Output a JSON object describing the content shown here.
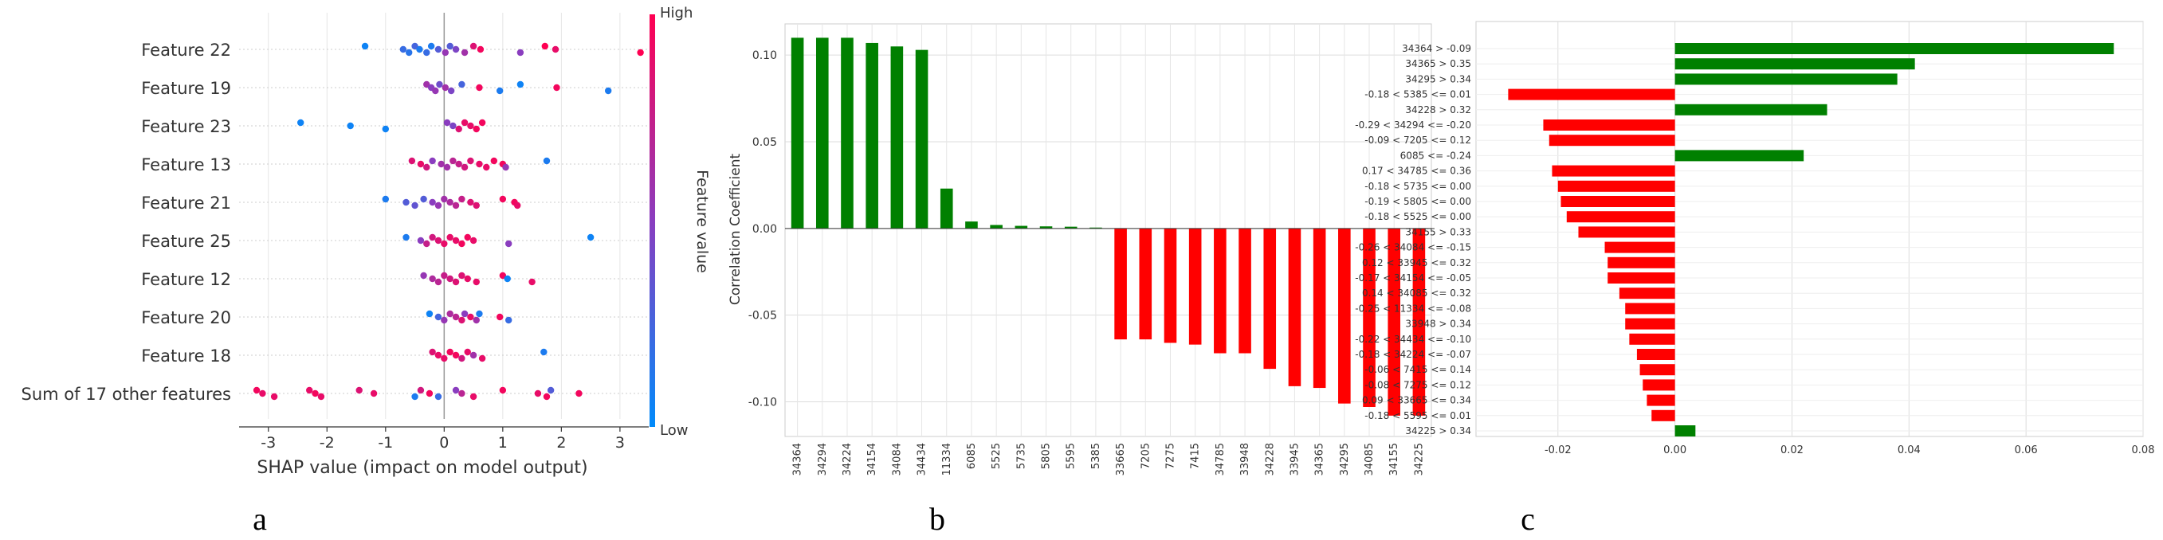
{
  "chart_data": [
    {
      "type": "scatter",
      "panel_label": "a",
      "features": [
        "Feature 22",
        "Feature 19",
        "Feature 23",
        "Feature 13",
        "Feature 21",
        "Feature 25",
        "Feature 12",
        "Feature 20",
        "Feature 18",
        "Sum of 17 other features"
      ],
      "xlabel": "SHAP value (impact on model output)",
      "xlim": [
        -3.5,
        3.6
      ],
      "xticks": [
        -3,
        -2,
        -1,
        0,
        1,
        2,
        3
      ],
      "colorbar": {
        "label": "Feature value",
        "high_label": "High",
        "low_label": "Low",
        "high_color": "#ff0052",
        "low_color": "#008bfb"
      },
      "series": [
        {
          "feature": "Feature 22",
          "points": [
            [
              -1.35,
              0.05
            ],
            [
              -0.7,
              0.2
            ],
            [
              -0.6,
              0.15
            ],
            [
              -0.5,
              0.25
            ],
            [
              -0.42,
              0.1
            ],
            [
              -0.3,
              0.2
            ],
            [
              -0.22,
              0.1
            ],
            [
              -0.1,
              0.3
            ],
            [
              0.02,
              0.55
            ],
            [
              0.1,
              0.3
            ],
            [
              0.2,
              0.45
            ],
            [
              0.35,
              0.6
            ],
            [
              0.5,
              0.85
            ],
            [
              0.62,
              0.95
            ],
            [
              1.3,
              0.5
            ],
            [
              1.72,
              1.0
            ],
            [
              1.9,
              0.9
            ],
            [
              3.35,
              1.0
            ]
          ]
        },
        {
          "feature": "Feature 19",
          "points": [
            [
              -0.3,
              0.6
            ],
            [
              -0.22,
              0.5
            ],
            [
              -0.15,
              0.55
            ],
            [
              -0.08,
              0.4
            ],
            [
              0.02,
              0.6
            ],
            [
              0.12,
              0.45
            ],
            [
              0.3,
              0.25
            ],
            [
              0.6,
              0.95
            ],
            [
              0.95,
              0.1
            ],
            [
              1.3,
              0.05
            ],
            [
              1.92,
              0.95
            ],
            [
              2.8,
              0.1
            ]
          ]
        },
        {
          "feature": "Feature 23",
          "points": [
            [
              -2.45,
              0.05
            ],
            [
              -1.6,
              0.05
            ],
            [
              -1.0,
              0.05
            ],
            [
              0.05,
              0.5
            ],
            [
              0.15,
              0.45
            ],
            [
              0.25,
              0.85
            ],
            [
              0.35,
              0.9
            ],
            [
              0.45,
              0.9
            ],
            [
              0.55,
              0.95
            ],
            [
              0.65,
              0.95
            ]
          ]
        },
        {
          "feature": "Feature 13",
          "points": [
            [
              -0.55,
              0.85
            ],
            [
              -0.4,
              0.9
            ],
            [
              -0.3,
              0.8
            ],
            [
              -0.2,
              0.5
            ],
            [
              -0.05,
              0.6
            ],
            [
              0.05,
              0.6
            ],
            [
              0.15,
              0.7
            ],
            [
              0.25,
              0.75
            ],
            [
              0.35,
              0.8
            ],
            [
              0.45,
              0.85
            ],
            [
              0.6,
              0.9
            ],
            [
              0.72,
              0.9
            ],
            [
              0.85,
              0.95
            ],
            [
              1.0,
              0.95
            ],
            [
              1.05,
              0.55
            ],
            [
              1.75,
              0.1
            ]
          ]
        },
        {
          "feature": "Feature 21",
          "points": [
            [
              -1.0,
              0.1
            ],
            [
              -0.65,
              0.3
            ],
            [
              -0.5,
              0.35
            ],
            [
              -0.35,
              0.3
            ],
            [
              -0.2,
              0.5
            ],
            [
              -0.1,
              0.55
            ],
            [
              0.0,
              0.6
            ],
            [
              0.1,
              0.65
            ],
            [
              0.2,
              0.7
            ],
            [
              0.3,
              0.75
            ],
            [
              0.45,
              0.85
            ],
            [
              0.55,
              0.85
            ],
            [
              1.0,
              0.95
            ],
            [
              1.2,
              0.95
            ],
            [
              1.25,
              0.9
            ]
          ]
        },
        {
          "feature": "Feature 25",
          "points": [
            [
              -0.65,
              0.1
            ],
            [
              -0.4,
              0.5
            ],
            [
              -0.3,
              0.75
            ],
            [
              -0.2,
              0.8
            ],
            [
              -0.1,
              0.85
            ],
            [
              0.0,
              0.9
            ],
            [
              0.1,
              0.9
            ],
            [
              0.2,
              0.9
            ],
            [
              0.3,
              0.95
            ],
            [
              0.4,
              0.95
            ],
            [
              0.5,
              0.9
            ],
            [
              1.1,
              0.5
            ],
            [
              2.5,
              0.05
            ]
          ]
        },
        {
          "feature": "Feature 12",
          "points": [
            [
              -0.35,
              0.55
            ],
            [
              -0.2,
              0.65
            ],
            [
              -0.1,
              0.7
            ],
            [
              0.0,
              0.75
            ],
            [
              0.1,
              0.8
            ],
            [
              0.2,
              0.85
            ],
            [
              0.3,
              0.85
            ],
            [
              0.4,
              0.9
            ],
            [
              0.55,
              0.9
            ],
            [
              1.0,
              0.95
            ],
            [
              1.08,
              0.05
            ],
            [
              1.5,
              0.9
            ]
          ]
        },
        {
          "feature": "Feature 20",
          "points": [
            [
              -0.25,
              0.05
            ],
            [
              -0.1,
              0.25
            ],
            [
              0.0,
              0.55
            ],
            [
              0.1,
              0.65
            ],
            [
              0.2,
              0.7
            ],
            [
              0.3,
              0.85
            ],
            [
              0.35,
              0.5
            ],
            [
              0.45,
              0.9
            ],
            [
              0.55,
              0.6
            ],
            [
              0.6,
              0.1
            ],
            [
              0.95,
              0.95
            ],
            [
              1.1,
              0.2
            ]
          ]
        },
        {
          "feature": "Feature 18",
          "points": [
            [
              -0.2,
              0.85
            ],
            [
              -0.1,
              0.9
            ],
            [
              0.0,
              0.9
            ],
            [
              0.1,
              0.95
            ],
            [
              0.2,
              0.95
            ],
            [
              0.3,
              0.8
            ],
            [
              0.4,
              0.9
            ],
            [
              0.5,
              0.6
            ],
            [
              0.65,
              0.9
            ],
            [
              1.7,
              0.1
            ]
          ]
        },
        {
          "feature": "Sum of 17 other features",
          "points": [
            [
              -3.2,
              0.95
            ],
            [
              -3.1,
              0.9
            ],
            [
              -2.9,
              0.9
            ],
            [
              -2.3,
              0.9
            ],
            [
              -2.2,
              0.95
            ],
            [
              -2.1,
              0.9
            ],
            [
              -1.45,
              0.85
            ],
            [
              -1.2,
              0.9
            ],
            [
              -0.5,
              0.1
            ],
            [
              -0.4,
              0.8
            ],
            [
              -0.25,
              0.95
            ],
            [
              -0.1,
              0.2
            ],
            [
              0.2,
              0.5
            ],
            [
              0.3,
              0.7
            ],
            [
              0.5,
              0.9
            ],
            [
              1.0,
              0.95
            ],
            [
              1.6,
              0.9
            ],
            [
              1.75,
              0.95
            ],
            [
              1.82,
              0.3
            ],
            [
              2.3,
              0.95
            ]
          ]
        }
      ]
    },
    {
      "type": "bar",
      "panel_label": "b",
      "ylabel": "Correlation Coefficient",
      "ylim": [
        -0.12,
        0.118
      ],
      "yticks": [
        0.1,
        0.05,
        0.0,
        -0.05,
        -0.1
      ],
      "ytick_labels": [
        "0.10",
        "0.05",
        "0.00",
        "-0.05",
        "-0.10"
      ],
      "categories": [
        "34364",
        "34294",
        "34224",
        "34154",
        "34084",
        "34434",
        "11334",
        "6085",
        "5525",
        "5735",
        "5805",
        "5595",
        "5385",
        "33665",
        "7205",
        "7275",
        "7415",
        "34785",
        "33948",
        "34228",
        "33945",
        "34365",
        "34295",
        "34085",
        "34155",
        "34225"
      ],
      "values": [
        0.11,
        0.11,
        0.11,
        0.107,
        0.105,
        0.103,
        0.023,
        0.004,
        0.002,
        0.0015,
        0.0012,
        0.001,
        0.0005,
        -0.064,
        -0.064,
        -0.066,
        -0.067,
        -0.072,
        -0.072,
        -0.081,
        -0.091,
        -0.092,
        -0.101,
        -0.103,
        -0.108,
        -0.108
      ],
      "positive_color": "#008000",
      "negative_color": "#ff0000"
    },
    {
      "type": "bar",
      "orientation": "horizontal",
      "panel_label": "c",
      "xlim": [
        -0.034,
        0.08
      ],
      "xticks": [
        -0.02,
        0.0,
        0.02,
        0.04,
        0.06,
        0.08
      ],
      "xtick_labels": [
        "-0.02",
        "0.00",
        "0.02",
        "0.04",
        "0.06",
        "0.08"
      ],
      "categories": [
        "34364 > -0.09",
        "34365 > 0.35",
        "34295 > 0.34",
        "-0.18 < 5385 <= 0.01",
        "34228 > 0.32",
        "-0.29 < 34294 <= -0.20",
        "-0.09 < 7205 <= 0.12",
        "6085 <= -0.24",
        "0.17 < 34785 <= 0.36",
        "-0.18 < 5735 <= 0.00",
        "-0.19 < 5805 <= 0.00",
        "-0.18 < 5525 <= 0.00",
        "34155 > 0.33",
        "-0.26 < 34084 <= -0.15",
        "0.12 < 33945 <= 0.32",
        "-0.17 < 34154 <= -0.05",
        "0.14 < 34085 <= 0.32",
        "-0.25 < 11334 <= -0.08",
        "33948 > 0.34",
        "-0.22 < 34434 <= -0.10",
        "-0.18 < 34224 <= -0.07",
        "-0.06 < 7415 <= 0.14",
        "-0.08 < 7275 <= 0.12",
        "0.09 < 33665 <= 0.34",
        "-0.18 < 5595 <= 0.01",
        "34225 > 0.34"
      ],
      "values": [
        0.075,
        0.041,
        0.038,
        -0.0285,
        0.026,
        -0.0225,
        -0.0215,
        0.022,
        -0.021,
        -0.02,
        -0.0195,
        -0.0185,
        -0.0165,
        -0.012,
        -0.0115,
        -0.0115,
        -0.0095,
        -0.0085,
        -0.0085,
        -0.0078,
        -0.0065,
        -0.006,
        -0.0055,
        -0.0048,
        -0.004,
        0.0035
      ],
      "positive_color": "#008000",
      "negative_color": "#ff0000"
    }
  ]
}
